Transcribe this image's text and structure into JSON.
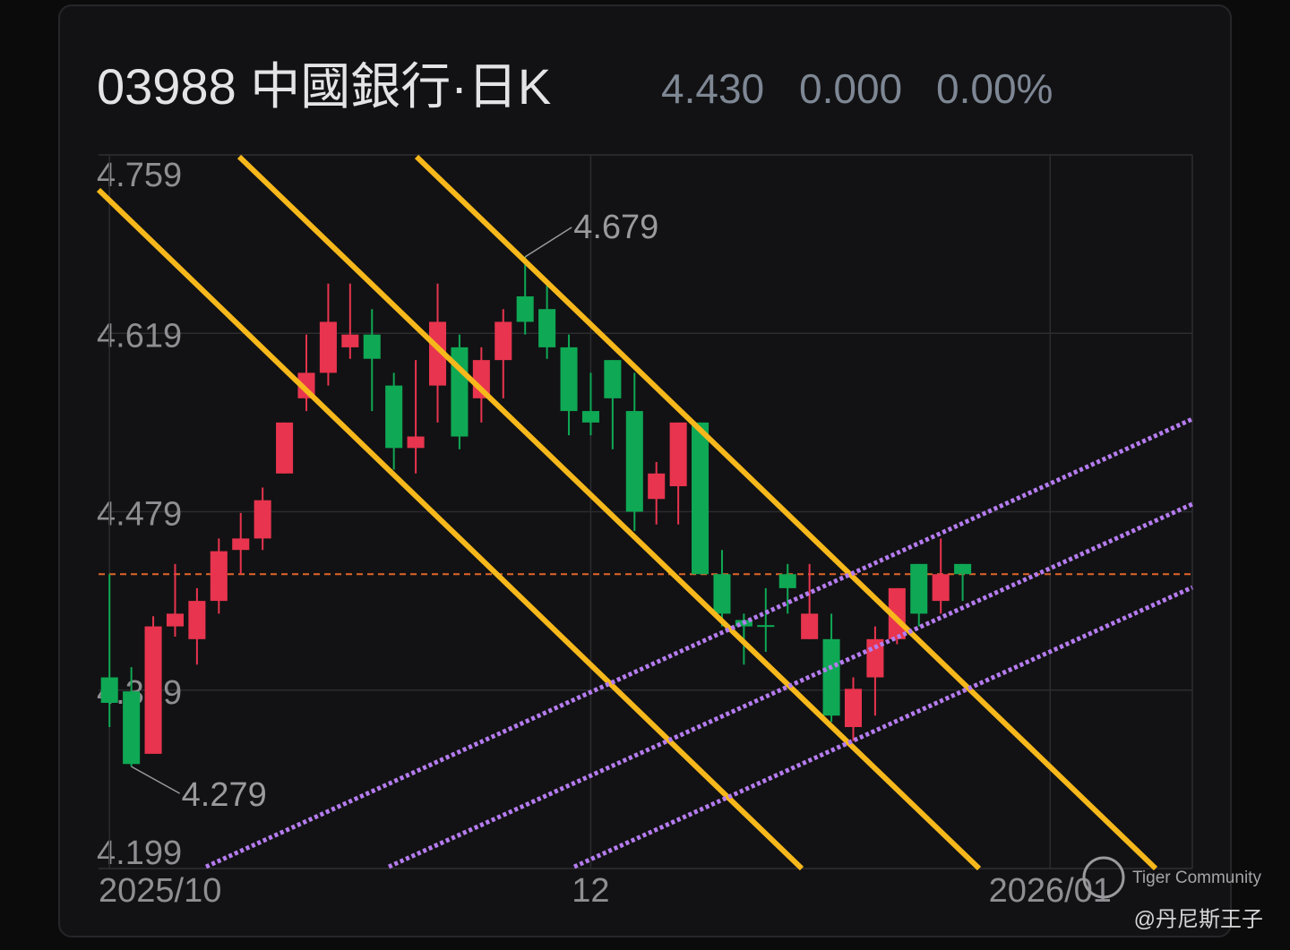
{
  "chart_data": {
    "type": "candlestick",
    "title": "03988 中國銀行·日K",
    "last_price": {
      "value": 4.43,
      "label": "4.430"
    },
    "change": {
      "value": 0,
      "label": "0.000"
    },
    "change_pct": {
      "value": 0,
      "label": "0.00%"
    },
    "x": [
      0,
      1,
      2,
      3,
      4,
      5,
      6,
      7,
      8,
      9,
      10,
      11,
      12,
      13,
      14,
      15,
      16,
      17,
      18,
      19,
      20,
      21,
      22,
      23,
      24,
      25,
      26,
      27,
      28,
      29,
      30,
      31,
      32,
      33,
      34,
      35,
      36,
      37,
      38,
      39
    ],
    "open": [
      4.349,
      4.338,
      4.289,
      4.389,
      4.379,
      4.409,
      4.449,
      4.458,
      4.509,
      4.568,
      4.588,
      4.608,
      4.618,
      4.578,
      4.529,
      4.578,
      4.608,
      4.568,
      4.598,
      4.648,
      4.638,
      4.608,
      4.558,
      4.598,
      4.558,
      4.489,
      4.499,
      4.549,
      4.43,
      4.394,
      4.39,
      4.43,
      4.379,
      4.379,
      4.31,
      4.349,
      4.379,
      4.438,
      4.409,
      4.438
    ],
    "high": [
      4.43,
      4.357,
      4.397,
      4.438,
      4.419,
      4.458,
      4.478,
      4.498,
      4.549,
      4.618,
      4.658,
      4.658,
      4.638,
      4.588,
      4.598,
      4.658,
      4.618,
      4.608,
      4.638,
      4.679,
      4.658,
      4.618,
      4.588,
      4.598,
      4.588,
      4.518,
      4.549,
      4.549,
      4.449,
      4.399,
      4.419,
      4.438,
      4.438,
      4.399,
      4.349,
      4.389,
      4.419,
      4.438,
      4.458,
      4.438
    ],
    "low": [
      4.31,
      4.279,
      4.289,
      4.381,
      4.359,
      4.399,
      4.43,
      4.449,
      4.509,
      4.558,
      4.578,
      4.599,
      4.558,
      4.512,
      4.509,
      4.549,
      4.528,
      4.549,
      4.568,
      4.618,
      4.599,
      4.539,
      4.539,
      4.528,
      4.464,
      4.469,
      4.469,
      4.43,
      4.389,
      4.359,
      4.369,
      4.399,
      4.379,
      4.314,
      4.299,
      4.319,
      4.375,
      4.389,
      4.399,
      4.409
    ],
    "close": [
      4.329,
      4.281,
      4.389,
      4.399,
      4.409,
      4.448,
      4.458,
      4.488,
      4.549,
      4.588,
      4.628,
      4.618,
      4.599,
      4.529,
      4.538,
      4.628,
      4.538,
      4.598,
      4.628,
      4.628,
      4.608,
      4.558,
      4.549,
      4.568,
      4.479,
      4.509,
      4.549,
      4.43,
      4.399,
      4.389,
      4.389,
      4.419,
      4.399,
      4.319,
      4.34,
      4.379,
      4.419,
      4.399,
      4.43,
      4.43
    ],
    "up_color": "#e8344e",
    "down_color": "#0fa854",
    "xlim": [
      -0.5,
      49.5
    ],
    "xticks": [
      {
        "value": 0,
        "label": "2025/10"
      },
      {
        "value": 22,
        "label": "12"
      },
      {
        "value": 43,
        "label": "2026/01"
      }
    ],
    "ylim": [
      4.199,
      4.759
    ],
    "yticks": [
      4.199,
      4.339,
      4.479,
      4.619,
      4.759
    ],
    "grid": true,
    "max_annotation": 4.679,
    "min_annotation": 4.279
  },
  "watermark": {
    "brand": "Tiger Community",
    "user": "@丹尼斯王子"
  }
}
